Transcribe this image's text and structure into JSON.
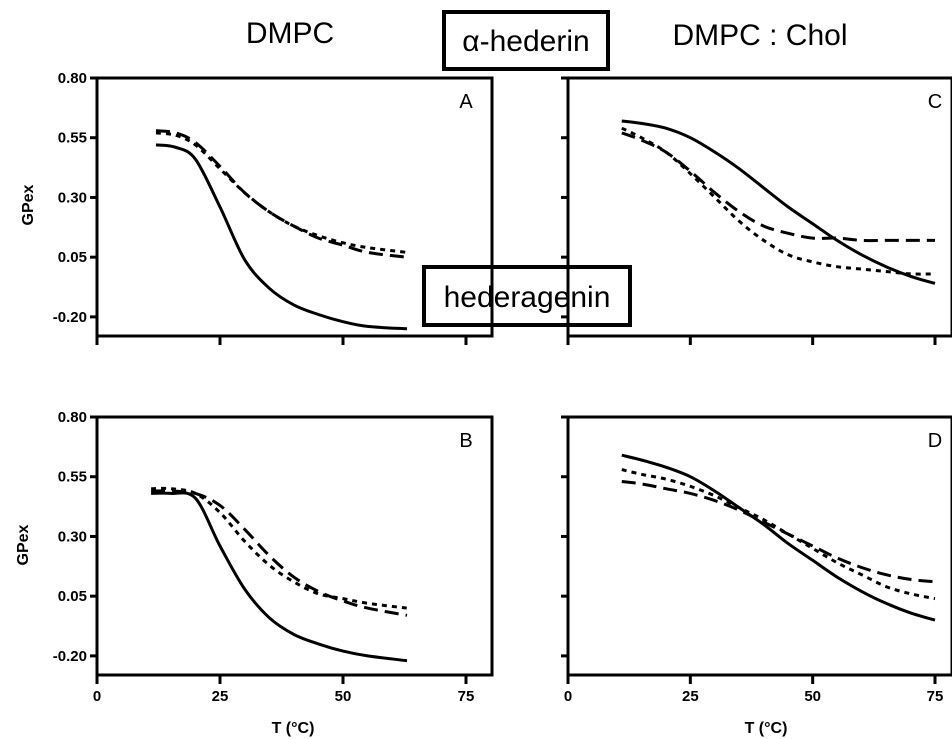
{
  "headings": {
    "left": "DMPC",
    "right": "DMPC : Chol",
    "top_box": "α-hederin",
    "bottom_box": "hederagenin"
  },
  "axes": {
    "y_label": "GPex",
    "x_label": "T (°C)",
    "y_ticks": [
      "0.80",
      "0.55",
      "0.30",
      "0.05",
      "-0.20"
    ],
    "x_ticks": [
      "0",
      "25",
      "50",
      "75"
    ]
  },
  "chart_data": [
    {
      "type": "line",
      "panel_label": "A",
      "xlim": [
        0,
        80
      ],
      "ylim": [
        -0.28,
        0.8
      ],
      "series": [
        {
          "line_style": "solid",
          "x": [
            12,
            16,
            20,
            25,
            30,
            35,
            40,
            45,
            50,
            55,
            63
          ],
          "y": [
            0.52,
            0.51,
            0.46,
            0.26,
            0.04,
            -0.08,
            -0.15,
            -0.19,
            -0.22,
            -0.24,
            -0.25
          ]
        },
        {
          "line_style": "dashed",
          "x": [
            12,
            16,
            20,
            25,
            30,
            35,
            40,
            45,
            50,
            55,
            63
          ],
          "y": [
            0.58,
            0.57,
            0.53,
            0.43,
            0.32,
            0.24,
            0.18,
            0.13,
            0.1,
            0.07,
            0.05
          ]
        },
        {
          "line_style": "dotted",
          "x": [
            12,
            16,
            20,
            25,
            30,
            35,
            40,
            45,
            50,
            55,
            63
          ],
          "y": [
            0.57,
            0.56,
            0.52,
            0.42,
            0.32,
            0.24,
            0.18,
            0.14,
            0.11,
            0.09,
            0.07
          ]
        }
      ]
    },
    {
      "type": "line",
      "panel_label": "B",
      "xlim": [
        0,
        80
      ],
      "ylim": [
        -0.28,
        0.8
      ],
      "series": [
        {
          "line_style": "solid",
          "x": [
            11,
            15,
            20,
            25,
            30,
            35,
            40,
            45,
            50,
            55,
            63
          ],
          "y": [
            0.48,
            0.48,
            0.46,
            0.26,
            0.08,
            -0.04,
            -0.11,
            -0.15,
            -0.18,
            -0.2,
            -0.22
          ]
        },
        {
          "line_style": "dashed",
          "x": [
            11,
            15,
            20,
            25,
            30,
            35,
            40,
            45,
            50,
            55,
            63
          ],
          "y": [
            0.49,
            0.49,
            0.48,
            0.43,
            0.33,
            0.22,
            0.13,
            0.07,
            0.03,
            0.0,
            -0.03
          ]
        },
        {
          "line_style": "dotted",
          "x": [
            11,
            15,
            20,
            25,
            30,
            35,
            40,
            45,
            50,
            55,
            63
          ],
          "y": [
            0.5,
            0.5,
            0.48,
            0.4,
            0.28,
            0.18,
            0.11,
            0.06,
            0.04,
            0.02,
            0.0
          ]
        }
      ]
    },
    {
      "type": "line",
      "panel_label": "C",
      "xlim": [
        0,
        75
      ],
      "ylim": [
        -0.28,
        0.8
      ],
      "series": [
        {
          "line_style": "solid",
          "x": [
            11,
            15,
            20,
            25,
            30,
            35,
            40,
            45,
            50,
            55,
            60,
            65,
            70,
            75
          ],
          "y": [
            0.62,
            0.61,
            0.59,
            0.55,
            0.49,
            0.42,
            0.34,
            0.26,
            0.19,
            0.12,
            0.06,
            0.01,
            -0.03,
            -0.06
          ]
        },
        {
          "line_style": "dashed",
          "x": [
            11,
            15,
            20,
            25,
            30,
            35,
            40,
            45,
            50,
            55,
            60,
            65,
            70,
            75
          ],
          "y": [
            0.57,
            0.54,
            0.49,
            0.41,
            0.32,
            0.24,
            0.18,
            0.15,
            0.13,
            0.13,
            0.12,
            0.12,
            0.12,
            0.12
          ]
        },
        {
          "line_style": "dotted",
          "x": [
            11,
            15,
            20,
            25,
            30,
            35,
            40,
            45,
            50,
            55,
            60,
            65,
            70,
            75
          ],
          "y": [
            0.59,
            0.55,
            0.49,
            0.4,
            0.3,
            0.2,
            0.12,
            0.06,
            0.03,
            0.01,
            0.0,
            -0.01,
            -0.02,
            -0.02
          ]
        }
      ]
    },
    {
      "type": "line",
      "panel_label": "D",
      "xlim": [
        0,
        75
      ],
      "ylim": [
        -0.28,
        0.8
      ],
      "series": [
        {
          "line_style": "solid",
          "x": [
            11,
            15,
            20,
            25,
            30,
            35,
            40,
            45,
            50,
            55,
            60,
            65,
            70,
            75
          ],
          "y": [
            0.64,
            0.62,
            0.59,
            0.55,
            0.49,
            0.42,
            0.35,
            0.27,
            0.2,
            0.13,
            0.07,
            0.02,
            -0.02,
            -0.05
          ]
        },
        {
          "line_style": "dashed",
          "x": [
            11,
            15,
            20,
            25,
            30,
            35,
            40,
            45,
            50,
            55,
            60,
            65,
            70,
            75
          ],
          "y": [
            0.53,
            0.52,
            0.5,
            0.48,
            0.45,
            0.41,
            0.36,
            0.31,
            0.26,
            0.21,
            0.17,
            0.14,
            0.12,
            0.11
          ]
        },
        {
          "line_style": "dotted",
          "x": [
            11,
            15,
            20,
            25,
            30,
            35,
            40,
            45,
            50,
            55,
            60,
            65,
            70,
            75
          ],
          "y": [
            0.58,
            0.56,
            0.54,
            0.51,
            0.47,
            0.42,
            0.37,
            0.31,
            0.25,
            0.19,
            0.14,
            0.09,
            0.06,
            0.04
          ]
        }
      ]
    }
  ]
}
